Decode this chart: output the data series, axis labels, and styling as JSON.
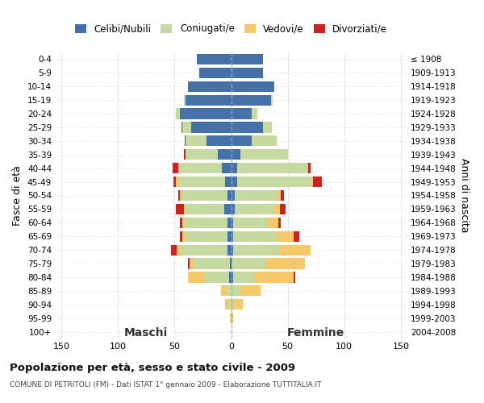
{
  "age_groups": [
    "0-4",
    "5-9",
    "10-14",
    "15-19",
    "20-24",
    "25-29",
    "30-34",
    "35-39",
    "40-44",
    "45-49",
    "50-54",
    "55-59",
    "60-64",
    "65-69",
    "70-74",
    "75-79",
    "80-84",
    "85-89",
    "90-94",
    "95-99",
    "100+"
  ],
  "birth_years": [
    "2004-2008",
    "1999-2003",
    "1994-1998",
    "1989-1993",
    "1984-1988",
    "1979-1983",
    "1974-1978",
    "1969-1973",
    "1964-1968",
    "1959-1963",
    "1954-1958",
    "1949-1953",
    "1944-1948",
    "1939-1943",
    "1934-1938",
    "1929-1933",
    "1924-1928",
    "1919-1923",
    "1914-1918",
    "1909-1913",
    "≤ 1908"
  ],
  "maschi_celibi": [
    30,
    28,
    38,
    40,
    45,
    35,
    22,
    12,
    8,
    5,
    3,
    6,
    3,
    3,
    3,
    1,
    2,
    0,
    0,
    0,
    0
  ],
  "maschi_coniugati": [
    0,
    0,
    0,
    2,
    4,
    8,
    18,
    28,
    38,
    42,
    40,
    35,
    38,
    38,
    42,
    32,
    22,
    4,
    2,
    0,
    0
  ],
  "maschi_vedovi": [
    0,
    0,
    0,
    0,
    0,
    0,
    0,
    0,
    1,
    2,
    2,
    1,
    2,
    2,
    3,
    4,
    14,
    5,
    3,
    1,
    0
  ],
  "maschi_divorziati": [
    0,
    0,
    0,
    0,
    0,
    1,
    1,
    2,
    5,
    2,
    2,
    7,
    2,
    2,
    5,
    1,
    0,
    0,
    0,
    0,
    0
  ],
  "femmine_nubili": [
    28,
    28,
    38,
    35,
    18,
    28,
    18,
    8,
    5,
    5,
    3,
    3,
    2,
    2,
    2,
    0,
    2,
    0,
    0,
    0,
    0
  ],
  "femmine_coniugate": [
    0,
    0,
    0,
    2,
    5,
    8,
    22,
    42,
    62,
    65,
    38,
    35,
    30,
    38,
    40,
    30,
    18,
    8,
    2,
    0,
    0
  ],
  "femmine_vedove": [
    0,
    0,
    0,
    0,
    0,
    0,
    0,
    0,
    1,
    2,
    3,
    5,
    10,
    15,
    28,
    35,
    35,
    18,
    8,
    2,
    0
  ],
  "femmine_divorziate": [
    0,
    0,
    0,
    0,
    0,
    0,
    0,
    0,
    2,
    8,
    3,
    5,
    2,
    5,
    0,
    0,
    2,
    0,
    0,
    0,
    0
  ],
  "colors": {
    "celibi": "#4472a8",
    "coniugati": "#c5d9a0",
    "vedovi": "#f5c96a",
    "divorziati": "#cc2222"
  },
  "xlim": 155,
  "title": "Popolazione per età, sesso e stato civile - 2009",
  "subtitle": "COMUNE DI PETRITOLI (FM) - Dati ISTAT 1° gennaio 2009 - Elaborazione TUTTITALIA.IT",
  "ylabel_left": "Fasce di età",
  "ylabel_right": "Anni di nascita",
  "xlabel_maschi": "Maschi",
  "xlabel_femmine": "Femmine",
  "bg_color": "#ffffff",
  "grid_color": "#cccccc"
}
